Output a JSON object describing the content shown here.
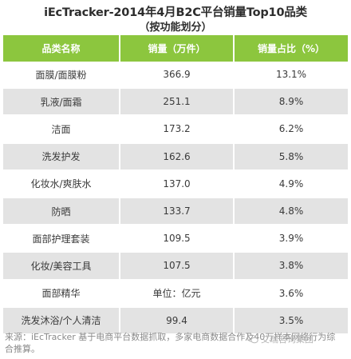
{
  "title": {
    "line1": "iEcTracker-2014年4月B2C平台销量Top10品类",
    "line2": "（按功能划分）"
  },
  "table": {
    "headers": [
      "品类名称",
      "销量（万件）",
      "销量占比（%）"
    ],
    "rows": [
      [
        "面膜/面膜粉",
        "366.9",
        "13.1%"
      ],
      [
        "乳液/面霜",
        "251.1",
        "8.9%"
      ],
      [
        "洁面",
        "173.2",
        "6.2%"
      ],
      [
        "洗发护发",
        "162.6",
        "5.8%"
      ],
      [
        "化妆水/爽肤水",
        "137.0",
        "4.9%"
      ],
      [
        "防晒",
        "133.7",
        "4.8%"
      ],
      [
        "面部护理套装",
        "109.5",
        "3.9%"
      ],
      [
        "化妆/美容工具",
        "107.5",
        "3.8%"
      ],
      [
        "面部精华",
        "单位：亿元",
        "3.6%"
      ],
      [
        "洗发沐浴/个人清洁",
        "99.4",
        "3.5%"
      ]
    ]
  },
  "footnote": "来源：iEcTracker 基于电商平台数据抓取，多家电商数据合作及40万样本网络行为综合推算。",
  "watermark": "艾瑞咨询集团",
  "watermark_icon": "wechat-icon",
  "colors": {
    "header_bg": "#8cc63e",
    "stripe": "#e3e3e3"
  }
}
